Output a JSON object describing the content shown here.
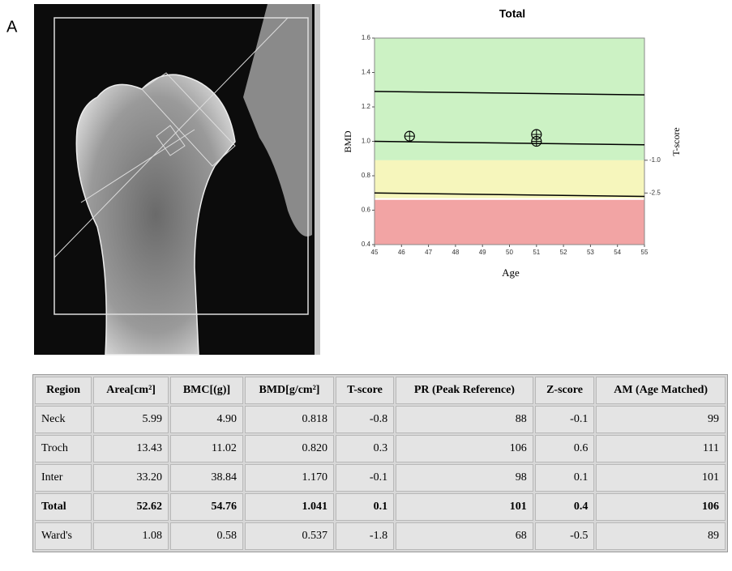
{
  "label": "A",
  "chart_data": {
    "type": "line",
    "title": "Total",
    "xlabel": "Age",
    "ylabel": "BMD",
    "y2label": "T-score",
    "xlim": [
      45,
      55
    ],
    "xticks": [
      45,
      46,
      47,
      48,
      49,
      50,
      51,
      52,
      53,
      54,
      55
    ],
    "ylim": [
      0.4,
      1.6
    ],
    "yticks": [
      0.4,
      0.6,
      0.8,
      {
        "value": 1,
        "label": "1.0"
      },
      1.2,
      1.4,
      1.6
    ],
    "y2lim": [
      -4.86,
      4.59
    ],
    "y2ticks": [
      {
        "value": -1,
        "label": "-1.0"
      },
      {
        "value": -2.5,
        "label": "-2.5"
      }
    ],
    "bands": [
      {
        "from": 0.89,
        "to": 1.6,
        "color": "#ccf2c4"
      },
      {
        "from": 0.67,
        "to": 0.89,
        "color": "#f6f6bc"
      },
      {
        "from": 0.4,
        "to": 0.66,
        "color": "#f2a4a4"
      }
    ],
    "series": [
      {
        "x": [
          45,
          55
        ],
        "values": [
          1.29,
          1.27
        ],
        "color": "#000000"
      },
      {
        "x": [
          45,
          55
        ],
        "values": [
          1.0,
          0.98
        ],
        "color": "#000000"
      },
      {
        "x": [
          45,
          55
        ],
        "values": [
          0.7,
          0.68
        ],
        "color": "#000000"
      }
    ],
    "points": {
      "x": [
        46.3,
        51,
        51
      ],
      "values": [
        1.03,
        1.04,
        1.0
      ],
      "color": "#000000"
    }
  },
  "table": {
    "header": [
      "Region",
      "Area[cm²]",
      "BMC[(g)]",
      "BMD[g/cm²]",
      "T-score",
      "PR (Peak Reference)",
      "Z-score",
      "AM (Age Matched)"
    ],
    "rows": [
      [
        "Neck",
        "5.99",
        "4.90",
        "0.818",
        "-0.8",
        "88",
        "-0.1",
        "99"
      ],
      [
        "Troch",
        "13.43",
        "11.02",
        "0.820",
        "0.3",
        "106",
        "0.6",
        "111"
      ],
      [
        "Inter",
        "33.20",
        "38.84",
        "1.170",
        "-0.1",
        "98",
        "0.1",
        "101"
      ],
      [
        "Total",
        "52.62",
        "54.76",
        "1.041",
        "0.1",
        "101",
        "0.4",
        "106"
      ],
      [
        "Ward's",
        "1.08",
        "0.58",
        "0.537",
        "-1.8",
        "68",
        "-0.5",
        "89"
      ]
    ]
  }
}
